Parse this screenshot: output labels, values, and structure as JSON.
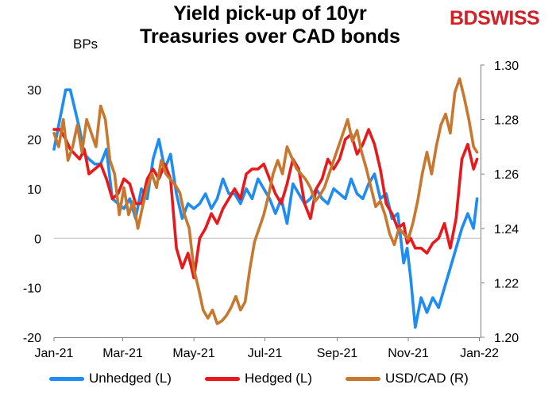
{
  "title_line1": "Yield pick-up of 10yr",
  "title_line2": "Treasuries over CAD bonds",
  "logo_bd": "BD",
  "logo_swiss": "SWISS",
  "unit_label": "BPs",
  "colors": {
    "unhedged": "#1e8cf0",
    "hedged": "#e8191c",
    "usdcad": "#c8782e"
  },
  "chart_data": {
    "type": "line",
    "title": "Yield pick-up of 10yr Treasuries over CAD bonds",
    "ylabel_left": "BPs",
    "ylim_left": [
      -20,
      35
    ],
    "ylim_right": [
      1.2,
      1.3
    ],
    "yticks_left": [
      "-20",
      "-10",
      "0",
      "10",
      "20",
      "30"
    ],
    "yticks_right": [
      "1.20",
      "1.22",
      "1.24",
      "1.26",
      "1.28",
      "1.30"
    ],
    "xlim": [
      0,
      366
    ],
    "xticks": [
      {
        "day": 0,
        "label": "Jan-21"
      },
      {
        "day": 59,
        "label": "Mar-21"
      },
      {
        "day": 120,
        "label": "May-21"
      },
      {
        "day": 181,
        "label": "Jul-21"
      },
      {
        "day": 243,
        "label": "Sep-21"
      },
      {
        "day": 304,
        "label": "Nov-21"
      },
      {
        "day": 365,
        "label": "Jan-22"
      }
    ],
    "legend_position": "bottom",
    "series": [
      {
        "name": "Unhedged (L)",
        "axis": "left",
        "x": [
          0,
          5,
          10,
          14,
          18,
          22,
          26,
          30,
          35,
          40,
          45,
          50,
          55,
          60,
          65,
          70,
          75,
          80,
          85,
          90,
          95,
          100,
          105,
          110,
          115,
          120,
          125,
          130,
          135,
          140,
          145,
          150,
          155,
          160,
          165,
          170,
          175,
          180,
          185,
          190,
          195,
          200,
          205,
          210,
          215,
          220,
          225,
          230,
          235,
          240,
          245,
          250,
          255,
          260,
          265,
          270,
          275,
          280,
          285,
          290,
          295,
          300,
          303,
          306,
          310,
          315,
          320,
          325,
          330,
          335,
          340,
          345,
          350,
          355,
          360,
          363
        ],
        "y": [
          18,
          24,
          30,
          30,
          26,
          22,
          17,
          16,
          15,
          15,
          18,
          8,
          7,
          6,
          8,
          4,
          10,
          8,
          16,
          20,
          14,
          17,
          9,
          4,
          7,
          6,
          7,
          9,
          6,
          8,
          12,
          9,
          9,
          7,
          10,
          8,
          12,
          10,
          8,
          5,
          8,
          3,
          11,
          9,
          7,
          8,
          10,
          8,
          7,
          10,
          9,
          8,
          12,
          9,
          8,
          11,
          13,
          8,
          9,
          4,
          5,
          -5,
          -2,
          -8,
          -18,
          -12,
          -15,
          -12,
          -14,
          -10,
          -6,
          -2,
          2,
          5,
          2,
          8
        ]
      },
      {
        "name": "Hedged (L)",
        "axis": "left",
        "x": [
          0,
          5,
          10,
          14,
          18,
          22,
          26,
          30,
          35,
          40,
          45,
          50,
          55,
          60,
          65,
          70,
          75,
          80,
          85,
          90,
          95,
          100,
          105,
          110,
          115,
          120,
          125,
          130,
          135,
          140,
          145,
          150,
          155,
          160,
          165,
          170,
          175,
          180,
          185,
          190,
          195,
          200,
          205,
          210,
          215,
          220,
          225,
          230,
          235,
          240,
          245,
          250,
          255,
          260,
          265,
          270,
          275,
          280,
          285,
          290,
          295,
          300,
          303,
          306,
          310,
          315,
          320,
          325,
          330,
          335,
          340,
          345,
          350,
          355,
          360,
          363
        ],
        "y": [
          22,
          22,
          20,
          18,
          17,
          16,
          18,
          13,
          14,
          15,
          12,
          8,
          9,
          12,
          11,
          7,
          7,
          12,
          14,
          12,
          15,
          12,
          -2,
          -6,
          -3,
          -8,
          0,
          2,
          5,
          3,
          6,
          8,
          10,
          8,
          13,
          14,
          14,
          15,
          12,
          9,
          7,
          11,
          16,
          14,
          7,
          4,
          10,
          12,
          16,
          14,
          16,
          20,
          21,
          17,
          19,
          22,
          19,
          14,
          7,
          5,
          2,
          3,
          -1,
          0,
          -2,
          -2,
          -3,
          -1,
          0,
          3,
          -2,
          4,
          16,
          19,
          14,
          16
        ]
      },
      {
        "name": "USD/CAD (R)",
        "axis": "right",
        "x": [
          0,
          4,
          8,
          12,
          16,
          20,
          24,
          28,
          32,
          36,
          40,
          44,
          48,
          52,
          56,
          60,
          64,
          68,
          72,
          76,
          80,
          84,
          88,
          92,
          96,
          100,
          104,
          108,
          112,
          116,
          120,
          124,
          128,
          132,
          136,
          140,
          144,
          148,
          152,
          156,
          160,
          164,
          168,
          172,
          176,
          180,
          184,
          188,
          192,
          196,
          200,
          204,
          208,
          212,
          216,
          220,
          224,
          228,
          232,
          236,
          240,
          244,
          248,
          252,
          256,
          260,
          264,
          268,
          272,
          276,
          280,
          284,
          288,
          292,
          296,
          300,
          304,
          308,
          312,
          316,
          320,
          324,
          328,
          332,
          336,
          340,
          344,
          348,
          352,
          356,
          360,
          363
        ],
        "y": [
          1.275,
          1.27,
          1.28,
          1.265,
          1.27,
          1.278,
          1.268,
          1.28,
          1.275,
          1.27,
          1.285,
          1.28,
          1.265,
          1.26,
          1.245,
          1.255,
          1.245,
          1.25,
          1.24,
          1.248,
          1.255,
          1.26,
          1.255,
          1.265,
          1.26,
          1.258,
          1.256,
          1.253,
          1.245,
          1.24,
          1.225,
          1.218,
          1.21,
          1.207,
          1.21,
          1.205,
          1.206,
          1.208,
          1.211,
          1.215,
          1.21,
          1.213,
          1.225,
          1.235,
          1.24,
          1.245,
          1.252,
          1.26,
          1.265,
          1.26,
          1.27,
          1.266,
          1.262,
          1.26,
          1.258,
          1.255,
          1.25,
          1.252,
          1.255,
          1.26,
          1.265,
          1.27,
          1.275,
          1.28,
          1.272,
          1.276,
          1.268,
          1.262,
          1.255,
          1.248,
          1.25,
          1.245,
          1.238,
          1.234,
          1.24,
          1.238,
          1.236,
          1.242,
          1.25,
          1.26,
          1.268,
          1.26,
          1.27,
          1.278,
          1.282,
          1.275,
          1.29,
          1.295,
          1.288,
          1.28,
          1.27,
          1.268
        ]
      }
    ]
  }
}
